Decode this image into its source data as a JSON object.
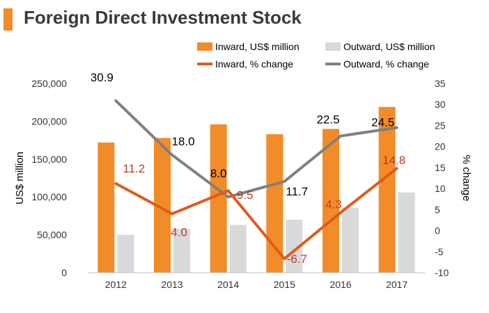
{
  "title": "Foreign Direct Investment Stock",
  "colors": {
    "accent": "#f28c28",
    "inward_bar": "#f28c28",
    "outward_bar": "#d9d9d9",
    "inward_line": "#e05a1e",
    "outward_line": "#808080",
    "inward_label": "#c0392b",
    "outward_label": "#000000"
  },
  "chart_data": {
    "type": "bar",
    "title": "Foreign Direct Investment Stock",
    "categories": [
      "2012",
      "2013",
      "2014",
      "2015",
      "2016",
      "2017"
    ],
    "series": [
      {
        "name": "Inward, US$ million",
        "kind": "bar",
        "axis": "left",
        "values": [
          172000,
          178000,
          196000,
          183000,
          190000,
          219000
        ]
      },
      {
        "name": "Outward, US$ million",
        "kind": "bar",
        "axis": "left",
        "values": [
          50000,
          58000,
          63000,
          70000,
          86000,
          106000
        ]
      },
      {
        "name": "Inward, % change",
        "kind": "line",
        "axis": "right",
        "values": [
          11.2,
          4.0,
          9.5,
          -6.7,
          4.3,
          14.8
        ],
        "labels": [
          "11.2",
          "4.0",
          "9.5",
          "-6.7",
          "4.3",
          "14.8"
        ]
      },
      {
        "name": "Outward, % change",
        "kind": "line",
        "axis": "right",
        "values": [
          30.9,
          18.0,
          8.0,
          11.7,
          22.5,
          24.5
        ],
        "labels": [
          "30.9",
          "18.0",
          "8.0",
          "11.7",
          "22.5",
          "24.5"
        ]
      }
    ],
    "ylabel": "US$ million",
    "y2label": "% change",
    "ylim": [
      0,
      250000
    ],
    "y2lim": [
      -10,
      35
    ],
    "yticks": [
      "0",
      "50,000",
      "100,000",
      "150,000",
      "200,000",
      "250,000"
    ],
    "ytick_values": [
      0,
      50000,
      100000,
      150000,
      200000,
      250000
    ],
    "y2ticks": [
      "-10",
      "-5",
      "0",
      "5",
      "10",
      "15",
      "20",
      "25",
      "30",
      "35"
    ],
    "y2tick_values": [
      -10,
      -5,
      0,
      5,
      10,
      15,
      20,
      25,
      30,
      35
    ],
    "grid": false,
    "legend": "top-right"
  }
}
